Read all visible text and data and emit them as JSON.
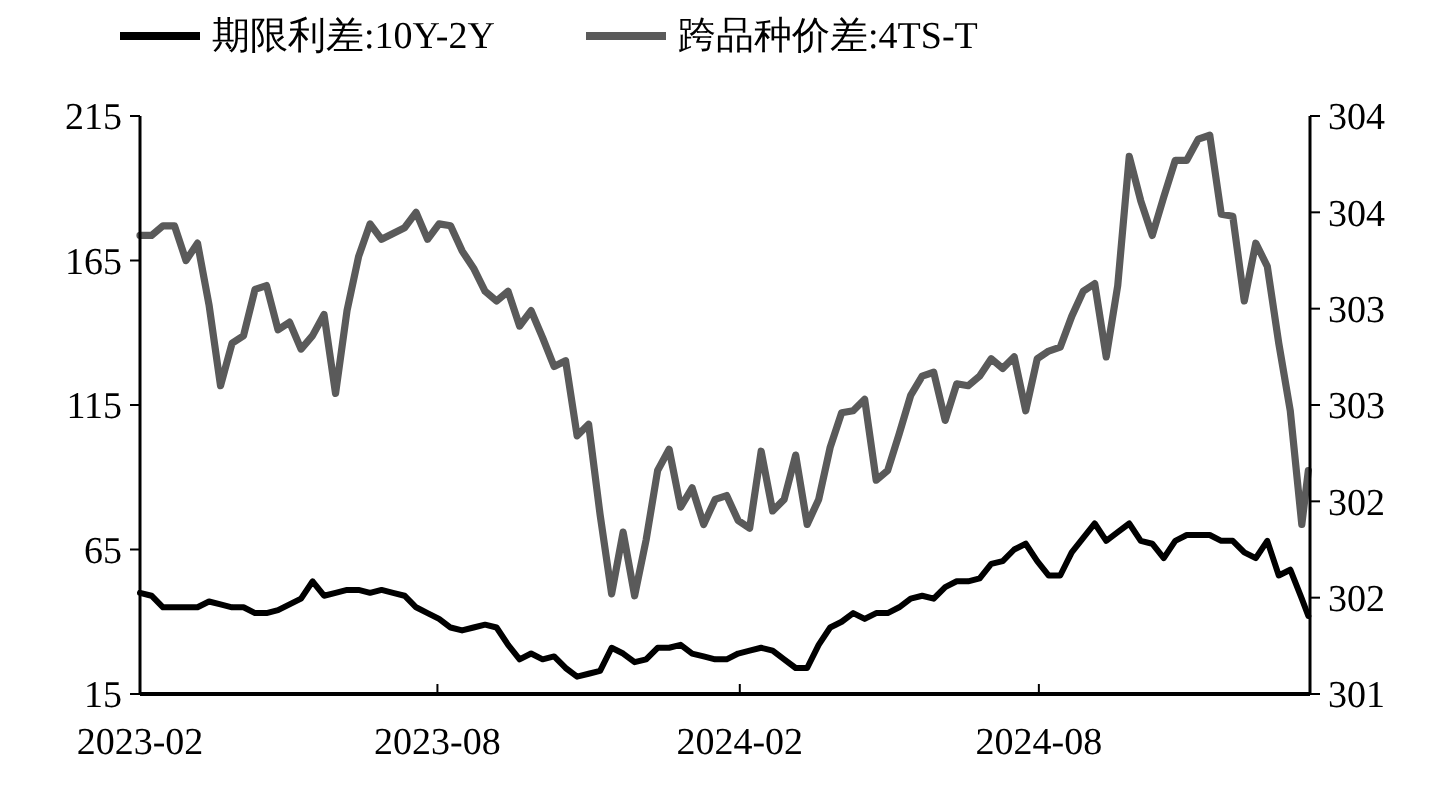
{
  "chart_data": {
    "type": "line",
    "x": [
      "2023-02-01",
      "2023-02-08",
      "2023-02-15",
      "2023-02-22",
      "2023-03-01",
      "2023-03-08",
      "2023-03-15",
      "2023-03-22",
      "2023-03-29",
      "2023-04-05",
      "2023-04-12",
      "2023-04-19",
      "2023-04-26",
      "2023-05-03",
      "2023-05-10",
      "2023-05-17",
      "2023-05-24",
      "2023-05-31",
      "2023-06-07",
      "2023-06-14",
      "2023-06-21",
      "2023-06-28",
      "2023-07-05",
      "2023-07-12",
      "2023-07-19",
      "2023-07-26",
      "2023-08-02",
      "2023-08-09",
      "2023-08-16",
      "2023-08-23",
      "2023-08-30",
      "2023-09-06",
      "2023-09-13",
      "2023-09-20",
      "2023-09-27",
      "2023-10-04",
      "2023-10-11",
      "2023-10-18",
      "2023-10-25",
      "2023-11-01",
      "2023-11-08",
      "2023-11-15",
      "2023-11-22",
      "2023-11-29",
      "2023-12-06",
      "2023-12-13",
      "2023-12-20",
      "2023-12-27",
      "2024-01-03",
      "2024-01-10",
      "2024-01-17",
      "2024-01-24",
      "2024-01-31",
      "2024-02-07",
      "2024-02-14",
      "2024-02-21",
      "2024-02-28",
      "2024-03-06",
      "2024-03-13",
      "2024-03-20",
      "2024-03-27",
      "2024-04-03",
      "2024-04-10",
      "2024-04-17",
      "2024-04-24",
      "2024-05-01",
      "2024-05-08",
      "2024-05-15",
      "2024-05-22",
      "2024-05-29",
      "2024-06-05",
      "2024-06-12",
      "2024-06-19",
      "2024-06-26",
      "2024-07-03",
      "2024-07-10",
      "2024-07-17",
      "2024-07-24",
      "2024-07-31",
      "2024-08-07",
      "2024-08-14",
      "2024-08-21",
      "2024-08-28",
      "2024-09-04",
      "2024-09-11",
      "2024-09-18",
      "2024-09-25",
      "2024-10-02",
      "2024-10-09",
      "2024-10-16",
      "2024-10-23",
      "2024-10-30",
      "2024-11-06",
      "2024-11-13",
      "2024-11-20",
      "2024-11-27",
      "2024-12-04",
      "2024-12-11",
      "2024-12-18",
      "2024-12-25",
      "2025-01-01",
      "2025-01-08",
      "2025-01-12"
    ],
    "series": [
      {
        "name": "期限利差:10Y-2Y",
        "color": "#000000",
        "values": [
          50,
          49,
          45,
          45,
          45,
          45,
          47,
          46,
          45,
          45,
          43,
          43,
          44,
          46,
          48,
          54,
          49,
          50,
          51,
          51,
          50,
          51,
          50,
          49,
          45,
          43,
          41,
          38,
          37,
          38,
          39,
          38,
          32,
          27,
          29,
          27,
          28,
          24,
          21,
          22,
          23,
          31,
          29,
          26,
          27,
          31,
          31,
          32,
          29,
          28,
          27,
          27,
          29,
          30,
          31,
          30,
          27,
          24,
          24,
          32,
          38,
          40,
          43,
          41,
          43,
          43,
          45,
          48,
          49,
          48,
          52,
          54,
          54,
          55,
          60,
          61,
          65,
          67,
          61,
          56,
          56,
          64,
          69,
          74,
          68,
          71,
          74,
          68,
          67,
          62,
          68,
          70,
          70,
          70,
          68,
          68,
          64,
          62,
          68,
          56,
          58,
          48,
          42
        ]
      },
      {
        "name": "跨品种价差:4TS-T",
        "color": "#5a5a5a",
        "axis": "y2",
        "values": [
          303.38,
          303.38,
          303.43,
          303.43,
          303.25,
          303.34,
          303.02,
          302.6,
          302.82,
          302.86,
          303.1,
          303.12,
          302.89,
          302.93,
          302.79,
          302.86,
          302.97,
          302.56,
          302.99,
          303.27,
          303.44,
          303.36,
          303.39,
          303.42,
          303.5,
          303.36,
          303.44,
          303.43,
          303.3,
          303.21,
          303.09,
          303.04,
          303.09,
          302.91,
          302.99,
          302.85,
          302.7,
          302.73,
          302.34,
          302.4,
          301.93,
          301.52,
          301.84,
          301.51,
          301.8,
          302.16,
          302.27,
          301.97,
          302.07,
          301.88,
          302.01,
          302.03,
          301.9,
          301.86,
          302.26,
          301.95,
          302.01,
          302.24,
          301.88,
          302.01,
          302.28,
          302.46,
          302.47,
          302.53,
          302.11,
          302.16,
          302.35,
          302.55,
          302.65,
          302.67,
          302.42,
          302.61,
          302.6,
          302.65,
          302.74,
          302.69,
          302.75,
          302.47,
          302.74,
          302.78,
          302.8,
          302.96,
          303.09,
          303.13,
          302.75,
          303.12,
          303.79,
          303.56,
          303.38,
          303.58,
          303.77,
          303.77,
          303.88,
          303.9,
          303.49,
          303.48,
          303.04,
          303.34,
          303.22,
          302.82,
          302.47,
          301.88,
          302.16
        ]
      }
    ],
    "xlim": [
      "2023-02-01",
      "2025-01-13"
    ],
    "xticks": [
      "2023-02",
      "2023-08",
      "2024-02",
      "2024-08"
    ],
    "ylim": [
      15,
      215
    ],
    "yticks": [
      15,
      65,
      115,
      165,
      215
    ],
    "y2lim": [
      301,
      304
    ],
    "y2ticks": [
      {
        "value": 301,
        "label": "301"
      },
      {
        "value": 301.5,
        "label": "302"
      },
      {
        "value": 302,
        "label": "302"
      },
      {
        "value": 302.5,
        "label": "303"
      },
      {
        "value": 303,
        "label": "303"
      },
      {
        "value": 303.5,
        "label": "304"
      },
      {
        "value": 304,
        "label": "304"
      }
    ],
    "legend": "top left",
    "marker": "none",
    "line_style": "solid",
    "grid": false
  }
}
